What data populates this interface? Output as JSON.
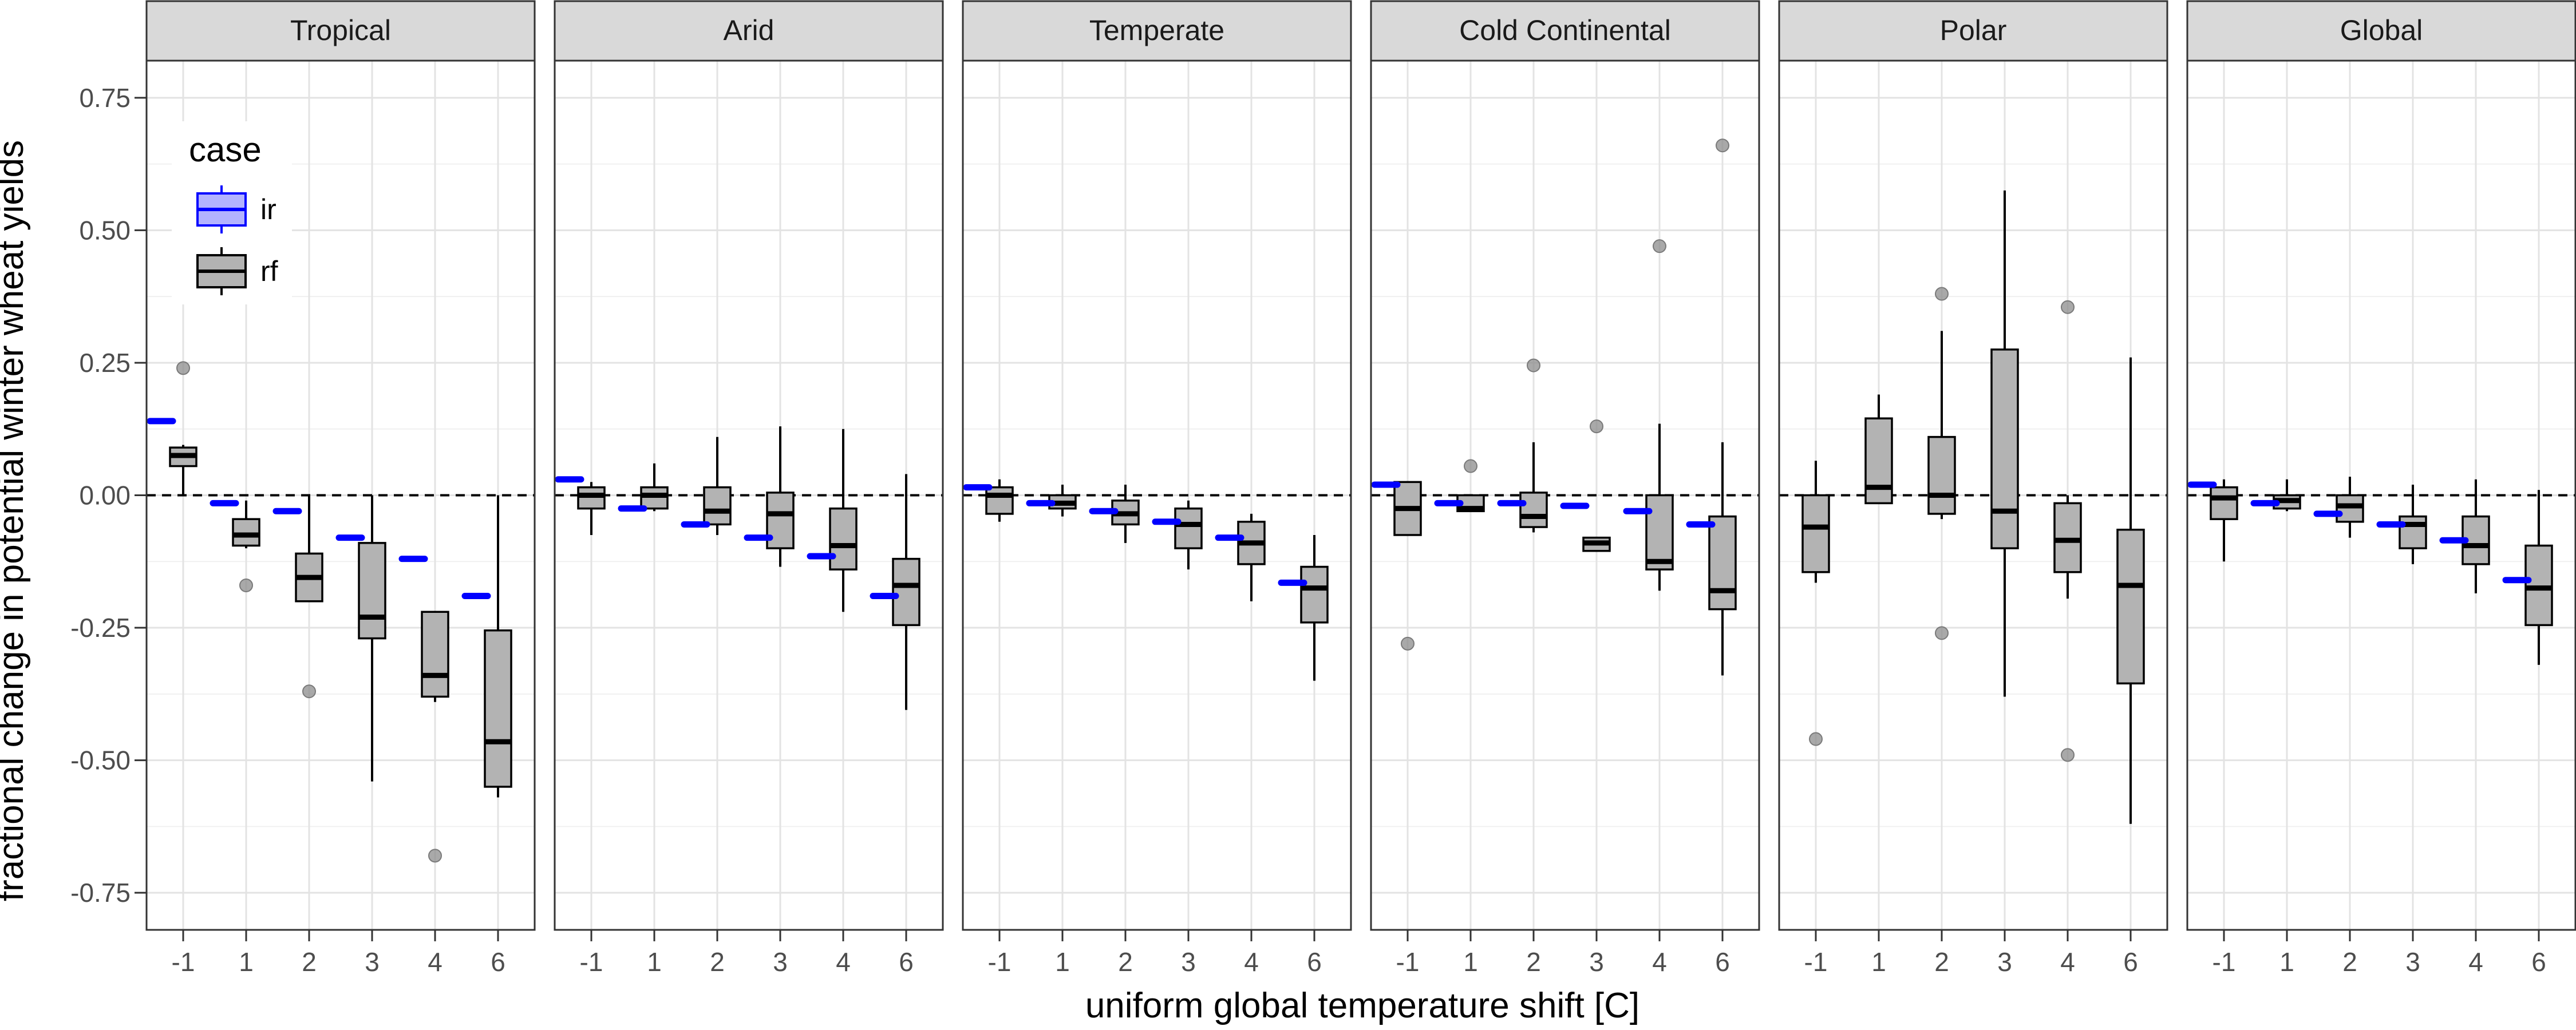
{
  "chart_data": {
    "type": "boxplot",
    "xlabel": "uniform global temperature shift [C]",
    "ylabel": "fractional change in potential winter wheat yields",
    "categories": [
      "-1",
      "1",
      "2",
      "3",
      "4",
      "6"
    ],
    "ylim": [
      -0.82,
      0.82
    ],
    "yticks": [
      0.75,
      0.5,
      0.25,
      0.0,
      -0.25,
      -0.5,
      -0.75
    ],
    "ytick_labels": [
      "0.75",
      "0.50",
      "0.25",
      "0.00",
      "-0.25",
      "-0.50",
      "-0.75"
    ],
    "reference_line": 0,
    "grid": true,
    "legend": {
      "title": "case",
      "position": "top-left",
      "entries": [
        {
          "label": "ir",
          "color": "#0000ff",
          "fill": "#b3b3ff"
        },
        {
          "label": "rf",
          "color": "#000000",
          "fill": "#b3b3b3"
        }
      ]
    },
    "panels": [
      {
        "title": "Tropical",
        "ir": [
          0.14,
          -0.015,
          -0.03,
          -0.08,
          -0.12,
          -0.19
        ],
        "rf": [
          {
            "q1": 0.055,
            "median": 0.075,
            "q3": 0.09,
            "lo": 0.0,
            "hi": 0.095,
            "outliers": [
              0.24
            ]
          },
          {
            "q1": -0.095,
            "median": -0.075,
            "q3": -0.045,
            "lo": -0.1,
            "hi": -0.01,
            "outliers": [
              -0.17
            ]
          },
          {
            "q1": -0.2,
            "median": -0.155,
            "q3": -0.11,
            "lo": -0.2,
            "hi": 0.0,
            "outliers": [
              -0.37
            ]
          },
          {
            "q1": -0.27,
            "median": -0.23,
            "q3": -0.09,
            "lo": -0.54,
            "hi": 0.0,
            "outliers": []
          },
          {
            "q1": -0.38,
            "median": -0.34,
            "q3": -0.22,
            "lo": -0.39,
            "hi": -0.22,
            "outliers": [
              -0.68
            ]
          },
          {
            "q1": -0.55,
            "median": -0.465,
            "q3": -0.255,
            "lo": -0.57,
            "hi": 0.0,
            "outliers": []
          }
        ]
      },
      {
        "title": "Arid",
        "ir": [
          0.03,
          -0.025,
          -0.055,
          -0.08,
          -0.115,
          -0.19
        ],
        "rf": [
          {
            "q1": -0.025,
            "median": 0.0,
            "q3": 0.015,
            "lo": -0.075,
            "hi": 0.025,
            "outliers": []
          },
          {
            "q1": -0.025,
            "median": 0.0,
            "q3": 0.015,
            "lo": -0.03,
            "hi": 0.06,
            "outliers": []
          },
          {
            "q1": -0.055,
            "median": -0.03,
            "q3": 0.015,
            "lo": -0.075,
            "hi": 0.11,
            "outliers": []
          },
          {
            "q1": -0.1,
            "median": -0.035,
            "q3": 0.005,
            "lo": -0.135,
            "hi": 0.13,
            "outliers": []
          },
          {
            "q1": -0.14,
            "median": -0.095,
            "q3": -0.025,
            "lo": -0.22,
            "hi": 0.125,
            "outliers": []
          },
          {
            "q1": -0.245,
            "median": -0.17,
            "q3": -0.12,
            "lo": -0.405,
            "hi": 0.04,
            "outliers": []
          }
        ]
      },
      {
        "title": "Temperate",
        "ir": [
          0.015,
          -0.015,
          -0.03,
          -0.05,
          -0.08,
          -0.165
        ],
        "rf": [
          {
            "q1": -0.035,
            "median": 0.0,
            "q3": 0.015,
            "lo": -0.05,
            "hi": 0.03,
            "outliers": []
          },
          {
            "q1": -0.025,
            "median": -0.015,
            "q3": 0.0,
            "lo": -0.04,
            "hi": 0.02,
            "outliers": []
          },
          {
            "q1": -0.055,
            "median": -0.035,
            "q3": -0.01,
            "lo": -0.09,
            "hi": 0.02,
            "outliers": []
          },
          {
            "q1": -0.1,
            "median": -0.055,
            "q3": -0.025,
            "lo": -0.14,
            "hi": -0.01,
            "outliers": []
          },
          {
            "q1": -0.13,
            "median": -0.09,
            "q3": -0.05,
            "lo": -0.2,
            "hi": -0.035,
            "outliers": []
          },
          {
            "q1": -0.24,
            "median": -0.175,
            "q3": -0.135,
            "lo": -0.35,
            "hi": -0.075,
            "outliers": []
          }
        ]
      },
      {
        "title": "Cold Continental",
        "ir": [
          0.02,
          -0.015,
          -0.015,
          -0.02,
          -0.03,
          -0.055
        ],
        "rf": [
          {
            "q1": -0.075,
            "median": -0.025,
            "q3": 0.025,
            "lo": -0.075,
            "hi": 0.025,
            "outliers": [
              -0.28
            ]
          },
          {
            "q1": -0.03,
            "median": -0.025,
            "q3": 0.0,
            "lo": -0.03,
            "hi": 0.0,
            "outliers": [
              0.055
            ]
          },
          {
            "q1": -0.06,
            "median": -0.04,
            "q3": 0.005,
            "lo": -0.07,
            "hi": 0.1,
            "outliers": [
              0.245
            ]
          },
          {
            "q1": -0.105,
            "median": -0.09,
            "q3": -0.08,
            "lo": -0.105,
            "hi": -0.08,
            "outliers": [
              0.13
            ]
          },
          {
            "q1": -0.14,
            "median": -0.125,
            "q3": 0.0,
            "lo": -0.18,
            "hi": 0.135,
            "outliers": [
              0.47
            ]
          },
          {
            "q1": -0.215,
            "median": -0.18,
            "q3": -0.04,
            "lo": -0.34,
            "hi": 0.1,
            "outliers": [
              0.66
            ]
          }
        ]
      },
      {
        "title": "Polar",
        "ir": [],
        "rf": [
          {
            "q1": -0.145,
            "median": -0.06,
            "q3": 0.0,
            "lo": -0.165,
            "hi": 0.065,
            "outliers": [
              -0.46
            ]
          },
          {
            "q1": -0.015,
            "median": 0.015,
            "q3": 0.145,
            "lo": -0.015,
            "hi": 0.19,
            "outliers": []
          },
          {
            "q1": -0.035,
            "median": 0.0,
            "q3": 0.11,
            "lo": -0.045,
            "hi": 0.31,
            "outliers": [
              0.38,
              -0.26
            ]
          },
          {
            "q1": -0.1,
            "median": -0.03,
            "q3": 0.275,
            "lo": -0.38,
            "hi": 0.575,
            "outliers": []
          },
          {
            "q1": -0.145,
            "median": -0.085,
            "q3": -0.015,
            "lo": -0.195,
            "hi": 0.0,
            "outliers": [
              0.355,
              -0.49
            ]
          },
          {
            "q1": -0.355,
            "median": -0.17,
            "q3": -0.065,
            "lo": -0.62,
            "hi": 0.26,
            "outliers": []
          }
        ]
      },
      {
        "title": "Global",
        "ir": [
          0.02,
          -0.015,
          -0.035,
          -0.055,
          -0.085,
          -0.16
        ],
        "rf": [
          {
            "q1": -0.045,
            "median": -0.005,
            "q3": 0.015,
            "lo": -0.125,
            "hi": 0.03,
            "outliers": []
          },
          {
            "q1": -0.025,
            "median": -0.01,
            "q3": 0.0,
            "lo": -0.03,
            "hi": 0.03,
            "outliers": []
          },
          {
            "q1": -0.05,
            "median": -0.02,
            "q3": 0.0,
            "lo": -0.08,
            "hi": 0.035,
            "outliers": []
          },
          {
            "q1": -0.1,
            "median": -0.055,
            "q3": -0.04,
            "lo": -0.13,
            "hi": 0.02,
            "outliers": []
          },
          {
            "q1": -0.13,
            "median": -0.095,
            "q3": -0.04,
            "lo": -0.185,
            "hi": 0.03,
            "outliers": []
          },
          {
            "q1": -0.245,
            "median": -0.175,
            "q3": -0.095,
            "lo": -0.32,
            "hi": 0.01,
            "outliers": []
          }
        ]
      }
    ]
  }
}
